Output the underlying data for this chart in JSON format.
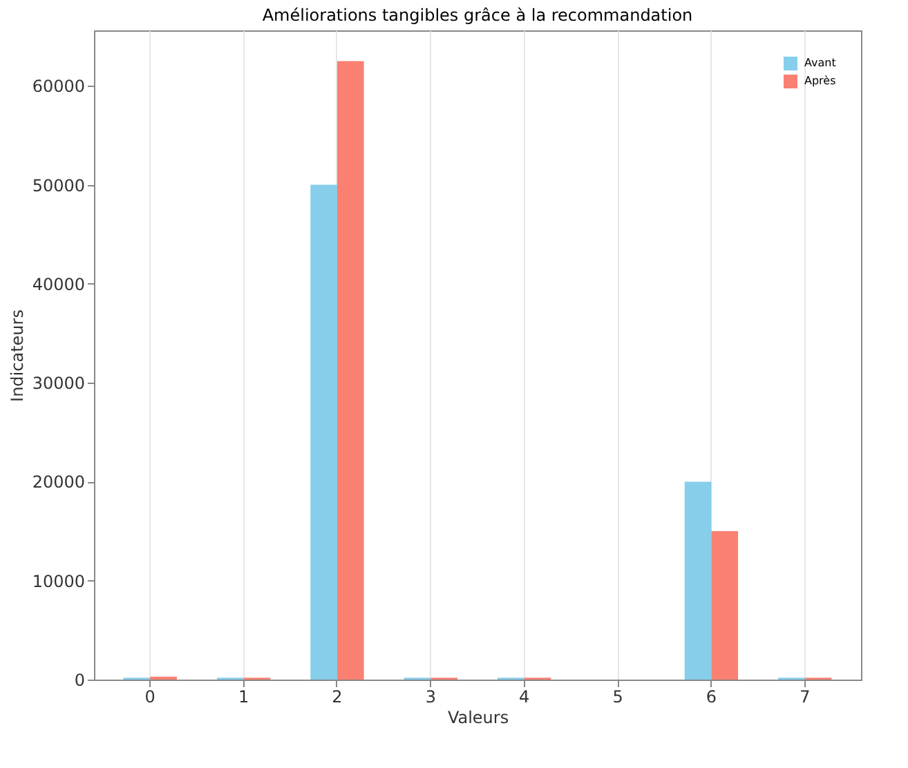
{
  "chart_data": {
    "type": "bar",
    "title": "Améliorations tangibles grâce à la recommandation",
    "xlabel": "Valeurs",
    "ylabel": "Indicateurs",
    "categories": [
      "0",
      "1",
      "2",
      "3",
      "4",
      "5",
      "6",
      "7"
    ],
    "series": [
      {
        "name": "Avant",
        "color": "#87ceeb",
        "values": [
          200,
          200,
          50000,
          200,
          200,
          0,
          20000,
          200
        ]
      },
      {
        "name": "Après",
        "color": "#fa8072",
        "values": [
          300,
          200,
          62500,
          200,
          200,
          0,
          15000,
          200
        ]
      }
    ],
    "ylim": [
      0,
      65600
    ],
    "yticks": [
      0,
      10000,
      20000,
      30000,
      40000,
      50000,
      60000
    ],
    "grid": "x",
    "legend": "top right"
  }
}
